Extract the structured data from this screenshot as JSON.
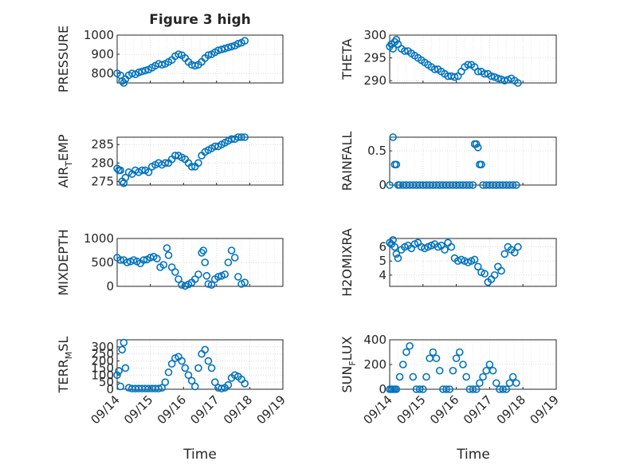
{
  "figure": {
    "title": "Figure 3 high",
    "xlabel": "Time",
    "xticks": [
      "09/14",
      "09/15",
      "09/16",
      "09/17",
      "09/18",
      "09/19"
    ],
    "marker_color": "#0072bd"
  },
  "chart_data": [
    {
      "type": "scatter",
      "ylabel": "PRESSURE",
      "ylabel_sub": "",
      "yticks": [
        800,
        900,
        1000
      ],
      "ylim": [
        750,
        1000
      ],
      "xlim": [
        0,
        5
      ],
      "grid": true,
      "x": [
        0.0,
        0.1,
        0.15,
        0.2,
        0.25,
        0.35,
        0.45,
        0.55,
        0.65,
        0.75,
        0.85,
        0.95,
        1.05,
        1.15,
        1.25,
        1.35,
        1.45,
        1.55,
        1.65,
        1.75,
        1.85,
        1.95,
        2.05,
        2.15,
        2.25,
        2.35,
        2.45,
        2.55,
        2.65,
        2.75,
        2.85,
        2.95,
        3.05,
        3.15,
        3.25,
        3.35,
        3.45,
        3.55,
        3.65,
        3.75,
        3.85
      ],
      "values": [
        800,
        790,
        760,
        750,
        770,
        790,
        800,
        795,
        805,
        810,
        815,
        820,
        830,
        840,
        850,
        845,
        850,
        860,
        870,
        890,
        900,
        895,
        880,
        860,
        845,
        840,
        845,
        860,
        880,
        895,
        900,
        910,
        920,
        925,
        930,
        935,
        940,
        945,
        955,
        960,
        970
      ]
    },
    {
      "type": "scatter",
      "ylabel": "THETA",
      "ylabel_sub": "",
      "yticks": [
        290,
        295,
        300
      ],
      "ylim": [
        289.5,
        300
      ],
      "xlim": [
        0,
        5
      ],
      "grid": true,
      "x": [
        0.0,
        0.05,
        0.1,
        0.15,
        0.2,
        0.25,
        0.35,
        0.45,
        0.55,
        0.65,
        0.75,
        0.85,
        0.95,
        1.05,
        1.15,
        1.25,
        1.35,
        1.45,
        1.55,
        1.65,
        1.75,
        1.85,
        1.95,
        2.05,
        2.15,
        2.25,
        2.35,
        2.45,
        2.55,
        2.65,
        2.75,
        2.85,
        2.95,
        3.05,
        3.15,
        3.25,
        3.35,
        3.45,
        3.55,
        3.65,
        3.75,
        3.85
      ],
      "values": [
        297.5,
        298,
        297,
        298.5,
        299,
        298,
        297,
        296.5,
        296.5,
        296,
        295.5,
        295,
        294.5,
        294,
        293.5,
        293,
        292.5,
        292.5,
        292,
        291.5,
        291,
        291,
        290.8,
        291,
        292,
        293,
        293.5,
        293.5,
        293,
        292,
        292,
        291.5,
        291.5,
        291,
        290.8,
        290.5,
        290.3,
        290,
        290.2,
        290.5,
        290,
        289.5
      ]
    },
    {
      "type": "scatter",
      "ylabel": "AIR",
      "ylabel_sub": "T",
      "ylabel_tail": "EMP",
      "yticks": [
        275,
        280,
        285
      ],
      "ylim": [
        274,
        287
      ],
      "xlim": [
        0,
        5
      ],
      "grid": true,
      "x": [
        0.0,
        0.05,
        0.1,
        0.15,
        0.2,
        0.25,
        0.35,
        0.45,
        0.55,
        0.65,
        0.75,
        0.85,
        0.95,
        1.05,
        1.15,
        1.25,
        1.35,
        1.45,
        1.55,
        1.65,
        1.75,
        1.85,
        1.95,
        2.05,
        2.15,
        2.25,
        2.35,
        2.45,
        2.55,
        2.65,
        2.75,
        2.85,
        2.95,
        3.05,
        3.15,
        3.25,
        3.35,
        3.45,
        3.55,
        3.65,
        3.75,
        3.85
      ],
      "values": [
        278.5,
        278,
        278,
        275,
        274.5,
        276,
        277.5,
        277,
        278,
        277.5,
        278,
        278,
        277.5,
        279,
        279.5,
        280,
        279.5,
        280,
        280,
        281,
        282,
        282,
        281.5,
        281,
        280,
        279,
        279,
        280,
        282,
        283,
        283.5,
        284,
        284.5,
        284.5,
        285,
        285.5,
        286,
        286.5,
        286.5,
        287,
        287,
        287
      ]
    },
    {
      "type": "scatter",
      "ylabel": "RAINFALL",
      "ylabel_sub": "",
      "yticks": [
        "0",
        "0.5"
      ],
      "ytick_values": [
        0,
        0.5
      ],
      "ylim": [
        0,
        0.7
      ],
      "xlim": [
        0,
        5
      ],
      "grid": true,
      "x": [
        0.0,
        0.1,
        0.15,
        0.2,
        0.25,
        0.3,
        0.4,
        0.5,
        0.6,
        0.7,
        0.8,
        0.9,
        1.0,
        1.1,
        1.2,
        1.3,
        1.4,
        1.5,
        1.6,
        1.7,
        1.8,
        1.9,
        2.0,
        2.1,
        2.2,
        2.3,
        2.4,
        2.5,
        2.55,
        2.6,
        2.65,
        2.7,
        2.75,
        2.8,
        2.9,
        3.0,
        3.1,
        3.2,
        3.3,
        3.4,
        3.5,
        3.6,
        3.7,
        3.8
      ],
      "values": [
        0,
        0.7,
        0.3,
        0.3,
        0,
        0,
        0,
        0,
        0,
        0,
        0,
        0,
        0,
        0,
        0,
        0,
        0,
        0,
        0,
        0,
        0,
        0,
        0,
        0,
        0,
        0,
        0,
        0,
        0.6,
        0.6,
        0.55,
        0.3,
        0.3,
        0,
        0,
        0,
        0,
        0,
        0,
        0,
        0,
        0,
        0,
        0
      ]
    },
    {
      "type": "scatter",
      "ylabel": "MIXDEPTH",
      "ylabel_sub": "",
      "yticks": [
        0,
        500,
        1000
      ],
      "ylim": [
        0,
        1000
      ],
      "xlim": [
        0,
        5
      ],
      "grid": true,
      "x": [
        0.0,
        0.1,
        0.2,
        0.3,
        0.4,
        0.5,
        0.6,
        0.7,
        0.8,
        0.9,
        1.0,
        1.1,
        1.2,
        1.3,
        1.4,
        1.5,
        1.55,
        1.65,
        1.75,
        1.85,
        1.95,
        2.05,
        2.15,
        2.25,
        2.35,
        2.45,
        2.55,
        2.6,
        2.65,
        2.7,
        2.75,
        2.85,
        2.95,
        3.05,
        3.15,
        3.25,
        3.35,
        3.45,
        3.55,
        3.65,
        3.75,
        3.85
      ],
      "values": [
        600,
        550,
        550,
        500,
        520,
        550,
        520,
        480,
        550,
        560,
        600,
        620,
        580,
        400,
        450,
        800,
        650,
        400,
        300,
        150,
        30,
        10,
        40,
        80,
        150,
        250,
        700,
        750,
        500,
        220,
        50,
        30,
        150,
        200,
        220,
        250,
        500,
        750,
        600,
        200,
        50,
        80
      ]
    },
    {
      "type": "scatter",
      "ylabel": "H2OMIXRA",
      "ylabel_sub": "",
      "yticks": [
        4,
        5,
        6
      ],
      "ylim": [
        3.2,
        6.6
      ],
      "xlim": [
        0,
        5
      ],
      "grid": true,
      "x": [
        0.0,
        0.05,
        0.1,
        0.15,
        0.2,
        0.25,
        0.35,
        0.45,
        0.55,
        0.65,
        0.75,
        0.85,
        0.95,
        1.05,
        1.15,
        1.25,
        1.35,
        1.45,
        1.55,
        1.65,
        1.75,
        1.85,
        1.95,
        2.05,
        2.15,
        2.25,
        2.35,
        2.45,
        2.55,
        2.65,
        2.75,
        2.85,
        2.95,
        3.05,
        3.15,
        3.25,
        3.35,
        3.45,
        3.55,
        3.65,
        3.75,
        3.85
      ],
      "values": [
        6.3,
        6.2,
        6.5,
        6,
        5.5,
        5.2,
        5.8,
        6,
        6.1,
        5.9,
        6.2,
        6.3,
        6,
        5.9,
        6,
        6.1,
        6.2,
        6,
        6.1,
        5.8,
        6.3,
        6,
        5.2,
        5,
        5.1,
        5,
        4.9,
        5,
        5.1,
        4.6,
        4.2,
        4.1,
        3.5,
        3.7,
        4,
        4.6,
        4.3,
        5.5,
        6,
        5.8,
        5.6,
        6
      ]
    },
    {
      "type": "scatter",
      "ylabel": "TERR",
      "ylabel_sub": "M",
      "ylabel_tail": "SL",
      "yticks": [
        0,
        50,
        100,
        150,
        200,
        250,
        300
      ],
      "ylim": [
        0,
        350
      ],
      "xlim": [
        0,
        5
      ],
      "grid": true,
      "x": [
        0.0,
        0.05,
        0.1,
        0.15,
        0.2,
        0.25,
        0.35,
        0.45,
        0.55,
        0.65,
        0.75,
        0.85,
        0.95,
        1.05,
        1.15,
        1.25,
        1.35,
        1.45,
        1.55,
        1.65,
        1.75,
        1.85,
        1.95,
        2.05,
        2.15,
        2.25,
        2.35,
        2.45,
        2.55,
        2.65,
        2.75,
        2.85,
        2.95,
        3.05,
        3.15,
        3.25,
        3.35,
        3.45,
        3.55,
        3.65,
        3.75,
        3.85
      ],
      "values": [
        100,
        130,
        20,
        280,
        330,
        150,
        10,
        5,
        5,
        5,
        5,
        5,
        5,
        5,
        5,
        5,
        10,
        50,
        120,
        180,
        220,
        230,
        200,
        150,
        100,
        60,
        20,
        150,
        250,
        280,
        200,
        150,
        50,
        10,
        5,
        10,
        30,
        80,
        100,
        90,
        70,
        40
      ]
    },
    {
      "type": "scatter",
      "ylabel": "SUN",
      "ylabel_sub": "F",
      "ylabel_tail": "LUX",
      "yticks": [
        0,
        200,
        400
      ],
      "ylim": [
        0,
        400
      ],
      "xlim": [
        0,
        5
      ],
      "grid": true,
      "x": [
        0.0,
        0.05,
        0.1,
        0.15,
        0.2,
        0.3,
        0.4,
        0.5,
        0.6,
        0.7,
        0.8,
        0.9,
        1.0,
        1.1,
        1.2,
        1.3,
        1.4,
        1.5,
        1.6,
        1.7,
        1.8,
        1.9,
        2.0,
        2.1,
        2.2,
        2.3,
        2.4,
        2.5,
        2.6,
        2.7,
        2.8,
        2.9,
        3.0,
        3.1,
        3.2,
        3.3,
        3.4,
        3.5,
        3.6,
        3.7,
        3.8
      ],
      "values": [
        0,
        0,
        0,
        0,
        0,
        100,
        200,
        300,
        350,
        100,
        0,
        0,
        0,
        100,
        250,
        300,
        250,
        150,
        0,
        0,
        0,
        150,
        250,
        300,
        200,
        100,
        0,
        0,
        0,
        50,
        100,
        150,
        200,
        150,
        50,
        0,
        0,
        0,
        50,
        100,
        50
      ]
    }
  ]
}
